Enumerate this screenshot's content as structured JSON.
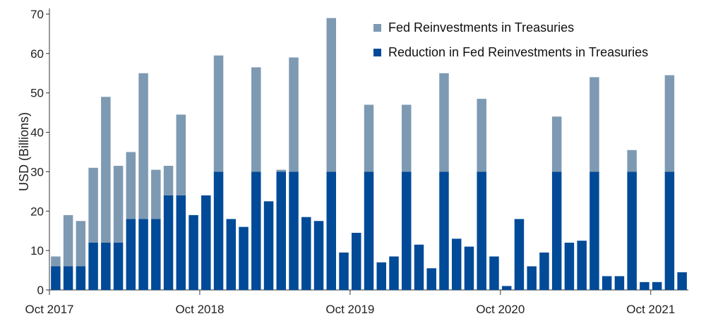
{
  "chart_data": {
    "type": "bar",
    "stacked": true,
    "title": "",
    "xlabel": "",
    "ylabel": "USD (Billions)",
    "ylim": [
      0,
      70
    ],
    "yticks": [
      0,
      10,
      20,
      30,
      40,
      50,
      60,
      70
    ],
    "grid": false,
    "legend_position": "top-right",
    "x_tick_labels": [
      {
        "index": 0,
        "label": "Oct 2017"
      },
      {
        "index": 12,
        "label": "Oct 2018"
      },
      {
        "index": 24,
        "label": "Oct 2019"
      },
      {
        "index": 36,
        "label": "Oct 2020"
      },
      {
        "index": 48,
        "label": "Oct 2021"
      }
    ],
    "categories": [
      "Oct 2017",
      "Nov 2017",
      "Dec 2017",
      "Jan 2018",
      "Feb 2018",
      "Mar 2018",
      "Apr 2018",
      "May 2018",
      "Jun 2018",
      "Jul 2018",
      "Aug 2018",
      "Sep 2018",
      "Oct 2018",
      "Nov 2018",
      "Dec 2018",
      "Jan 2019",
      "Feb 2019",
      "Mar 2019",
      "Apr 2019",
      "May 2019",
      "Jun 2019",
      "Jul 2019",
      "Aug 2019",
      "Sep 2019",
      "Oct 2019",
      "Nov 2019",
      "Dec 2019",
      "Jan 2020",
      "Feb 2020",
      "Mar 2020",
      "Apr 2020",
      "May 2020",
      "Jun 2020",
      "Jul 2020",
      "Aug 2020",
      "Sep 2020",
      "Oct 2020",
      "Nov 2020",
      "Dec 2020",
      "Jan 2021",
      "Feb 2021",
      "Mar 2021",
      "Apr 2021",
      "May 2021",
      "Jun 2021",
      "Jul 2021",
      "Aug 2021",
      "Sep 2021",
      "Oct 2021",
      "Nov 2021",
      "Dec 2021"
    ],
    "series": [
      {
        "name": "Reduction in Fed Reinvestments in Treasuries",
        "color": "#004a98",
        "values": [
          6,
          6,
          6,
          12,
          12,
          12,
          18,
          18,
          18,
          24,
          24,
          19,
          24,
          30,
          18,
          16,
          30,
          22.5,
          30,
          30,
          18.5,
          17.5,
          30,
          9.5,
          14.5,
          30,
          7,
          8.5,
          30,
          11.5,
          5.5,
          30,
          13,
          11,
          30,
          8.5,
          1,
          18,
          6,
          9.5,
          30,
          12,
          12.5,
          30,
          3.5,
          3.5,
          30,
          2,
          2,
          30,
          4.5
        ]
      },
      {
        "name": "Fed Reinvestments in Treasuries",
        "color": "#7e9ab3",
        "values": [
          2.5,
          13,
          11.5,
          19,
          37,
          19.5,
          17,
          37,
          12.5,
          7.5,
          20.5,
          0,
          0,
          29.5,
          0,
          0,
          26.5,
          0,
          0.5,
          29,
          0,
          0,
          39,
          0,
          0,
          17,
          0,
          0,
          17,
          0,
          0,
          25,
          0,
          0,
          18.5,
          0,
          0,
          0,
          0,
          0,
          14,
          0,
          0,
          24,
          0,
          0,
          5.5,
          0,
          0,
          24.5,
          0
        ]
      }
    ]
  }
}
